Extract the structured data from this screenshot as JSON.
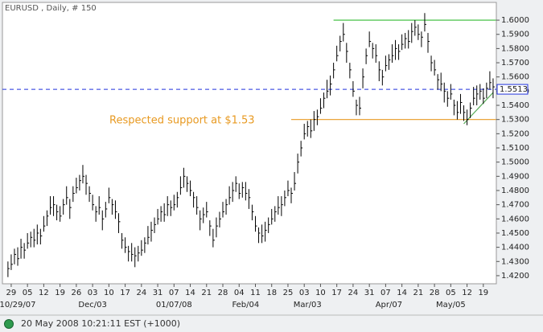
{
  "chart_data": {
    "type": "ohlc",
    "title": "EURUSD , Daily, # 150",
    "color": "#000000",
    "close": [
      1.425,
      1.428,
      1.435,
      1.432,
      1.44,
      1.438,
      1.443,
      1.447,
      1.445,
      1.45,
      1.448,
      1.455,
      1.462,
      1.468,
      1.47,
      1.465,
      1.462,
      1.47,
      1.475,
      1.468,
      1.478,
      1.482,
      1.487,
      1.49,
      1.485,
      1.478,
      1.47,
      1.465,
      1.468,
      1.46,
      1.467,
      1.475,
      1.47,
      1.465,
      1.458,
      1.445,
      1.44,
      1.437,
      1.435,
      1.434,
      1.436,
      1.438,
      1.443,
      1.447,
      1.452,
      1.456,
      1.46,
      1.465,
      1.463,
      1.47,
      1.468,
      1.47,
      1.475,
      1.482,
      1.49,
      1.485,
      1.48,
      1.475,
      1.468,
      1.46,
      1.463,
      1.465,
      1.455,
      1.445,
      1.455,
      1.46,
      1.465,
      1.47,
      1.475,
      1.48,
      1.485,
      1.478,
      1.482,
      1.478,
      1.475,
      1.465,
      1.455,
      1.45,
      1.448,
      1.452,
      1.456,
      1.46,
      1.465,
      1.468,
      1.47,
      1.475,
      1.48,
      1.478,
      1.485,
      1.5,
      1.51,
      1.52,
      1.525,
      1.522,
      1.53,
      1.532,
      1.538,
      1.545,
      1.55,
      1.555,
      1.565,
      1.575,
      1.585,
      1.59,
      1.578,
      1.565,
      1.55,
      1.54,
      1.538,
      1.56,
      1.575,
      1.585,
      1.58,
      1.575,
      1.565,
      1.56,
      1.568,
      1.572,
      1.575,
      1.58,
      1.578,
      1.583,
      1.587,
      1.585,
      1.592,
      1.595,
      1.59,
      1.588,
      1.597,
      1.585,
      1.57,
      1.565,
      1.558,
      1.555,
      1.55,
      1.545,
      1.548,
      1.54,
      1.535,
      1.542,
      1.535,
      1.53,
      1.538,
      1.545,
      1.548,
      1.55,
      1.545,
      1.552,
      1.556,
      1.553
    ],
    "high": [
      1.43,
      1.435,
      1.439,
      1.44,
      1.446,
      1.443,
      1.45,
      1.451,
      1.453,
      1.456,
      1.453,
      1.462,
      1.466,
      1.476,
      1.476,
      1.47,
      1.469,
      1.474,
      1.483,
      1.474,
      1.483,
      1.489,
      1.491,
      1.498,
      1.491,
      1.483,
      1.477,
      1.469,
      1.476,
      1.466,
      1.472,
      1.482,
      1.474,
      1.473,
      1.464,
      1.45,
      1.447,
      1.441,
      1.443,
      1.44,
      1.441,
      1.445,
      1.447,
      1.455,
      1.458,
      1.461,
      1.467,
      1.469,
      1.471,
      1.476,
      1.473,
      1.477,
      1.479,
      1.49,
      1.496,
      1.49,
      1.487,
      1.479,
      1.476,
      1.466,
      1.468,
      1.472,
      1.459,
      1.453,
      1.461,
      1.465,
      1.472,
      1.474,
      1.483,
      1.486,
      1.49,
      1.485,
      1.486,
      1.486,
      1.481,
      1.47,
      1.462,
      1.454,
      1.456,
      1.458,
      1.461,
      1.467,
      1.469,
      1.476,
      1.476,
      1.48,
      1.487,
      1.482,
      1.493,
      1.506,
      1.515,
      1.527,
      1.529,
      1.53,
      1.536,
      1.537,
      1.545,
      1.549,
      1.558,
      1.561,
      1.57,
      1.582,
      1.589,
      1.598,
      1.584,
      1.57,
      1.557,
      1.544,
      1.546,
      1.566,
      1.58,
      1.592,
      1.584,
      1.583,
      1.571,
      1.565,
      1.575,
      1.576,
      1.583,
      1.586,
      1.583,
      1.59,
      1.591,
      1.593,
      1.598,
      1.6,
      1.597,
      1.592,
      1.605,
      1.591,
      1.575,
      1.572,
      1.562,
      1.563,
      1.556,
      1.55,
      1.555,
      1.544,
      1.543,
      1.548,
      1.54,
      1.537,
      1.542,
      1.553,
      1.554,
      1.555,
      1.552,
      1.556,
      1.564,
      1.559
    ],
    "low": [
      1.419,
      1.424,
      1.428,
      1.427,
      1.432,
      1.432,
      1.439,
      1.44,
      1.44,
      1.442,
      1.442,
      1.451,
      1.455,
      1.463,
      1.462,
      1.459,
      1.458,
      1.463,
      1.47,
      1.46,
      1.472,
      1.478,
      1.48,
      1.485,
      1.477,
      1.472,
      1.466,
      1.458,
      1.463,
      1.452,
      1.461,
      1.471,
      1.463,
      1.46,
      1.45,
      1.439,
      1.436,
      1.43,
      1.43,
      1.426,
      1.43,
      1.434,
      1.436,
      1.442,
      1.444,
      1.45,
      1.456,
      1.458,
      1.458,
      1.462,
      1.462,
      1.466,
      1.468,
      1.477,
      1.482,
      1.479,
      1.476,
      1.468,
      1.463,
      1.452,
      1.457,
      1.461,
      1.448,
      1.44,
      1.447,
      1.454,
      1.461,
      1.463,
      1.47,
      1.472,
      1.479,
      1.474,
      1.475,
      1.473,
      1.467,
      1.459,
      1.451,
      1.443,
      1.443,
      1.444,
      1.45,
      1.456,
      1.458,
      1.463,
      1.462,
      1.469,
      1.476,
      1.471,
      1.48,
      1.492,
      1.504,
      1.516,
      1.518,
      1.517,
      1.522,
      1.526,
      1.534,
      1.538,
      1.545,
      1.547,
      1.559,
      1.571,
      1.578,
      1.585,
      1.57,
      1.559,
      1.546,
      1.533,
      1.533,
      1.552,
      1.569,
      1.581,
      1.573,
      1.57,
      1.557,
      1.554,
      1.564,
      1.565,
      1.57,
      1.572,
      1.572,
      1.579,
      1.58,
      1.58,
      1.584,
      1.589,
      1.586,
      1.581,
      1.592,
      1.577,
      1.564,
      1.561,
      1.551,
      1.55,
      1.542,
      1.539,
      1.544,
      1.533,
      1.53,
      1.534,
      1.529,
      1.526,
      1.531,
      1.54,
      1.54,
      1.544,
      1.541,
      1.545,
      1.551,
      1.545
    ],
    "xlim": [
      -1.7,
      150
    ],
    "ylim": [
      1.4143,
      1.6125
    ],
    "yticks": [
      {
        "value": 1.42,
        "label": "1.4200"
      },
      {
        "value": 1.43,
        "label": "1.4300"
      },
      {
        "value": 1.44,
        "label": "1.4400"
      },
      {
        "value": 1.45,
        "label": "1.4500"
      },
      {
        "value": 1.46,
        "label": "1.4600"
      },
      {
        "value": 1.47,
        "label": "1.4700"
      },
      {
        "value": 1.48,
        "label": "1.4800"
      },
      {
        "value": 1.49,
        "label": "1.4900"
      },
      {
        "value": 1.5,
        "label": "1.5000"
      },
      {
        "value": 1.51,
        "label": "1.5100"
      },
      {
        "value": 1.52,
        "label": "1.5200"
      },
      {
        "value": 1.53,
        "label": "1.5300"
      },
      {
        "value": 1.54,
        "label": "1.5400"
      },
      {
        "value": 1.55,
        "label": "1.5500"
      },
      {
        "value": 1.56,
        "label": "1.5600"
      },
      {
        "value": 1.57,
        "label": "1.5700"
      },
      {
        "value": 1.58,
        "label": "1.5800"
      },
      {
        "value": 1.59,
        "label": "1.5900"
      },
      {
        "value": 1.6,
        "label": "1.6000"
      }
    ],
    "xticks": [
      {
        "value": 1,
        "label": "29"
      },
      {
        "value": 6,
        "label": "05"
      },
      {
        "value": 11,
        "label": "12"
      },
      {
        "value": 16,
        "label": "19"
      },
      {
        "value": 21,
        "label": "26"
      },
      {
        "value": 26,
        "label": "03"
      },
      {
        "value": 31,
        "label": "10"
      },
      {
        "value": 36,
        "label": "17"
      },
      {
        "value": 41,
        "label": "24"
      },
      {
        "value": 46,
        "label": "31"
      },
      {
        "value": 51,
        "label": "07"
      },
      {
        "value": 56,
        "label": "14"
      },
      {
        "value": 61,
        "label": "21"
      },
      {
        "value": 66,
        "label": "28"
      },
      {
        "value": 71,
        "label": "04"
      },
      {
        "value": 76,
        "label": "11"
      },
      {
        "value": 81,
        "label": "18"
      },
      {
        "value": 86,
        "label": "25"
      },
      {
        "value": 91,
        "label": "03"
      },
      {
        "value": 96,
        "label": "10"
      },
      {
        "value": 101,
        "label": "17"
      },
      {
        "value": 106,
        "label": "24"
      },
      {
        "value": 111,
        "label": "31"
      },
      {
        "value": 116,
        "label": "07"
      },
      {
        "value": 121,
        "label": "14"
      },
      {
        "value": 126,
        "label": "21"
      },
      {
        "value": 131,
        "label": "28"
      },
      {
        "value": 136,
        "label": "05"
      },
      {
        "value": 141,
        "label": "12"
      },
      {
        "value": 146,
        "label": "19"
      }
    ],
    "x_period_labels": [
      {
        "value": 1,
        "label": "10/29/07"
      },
      {
        "value": 26,
        "label": "Dec/03"
      },
      {
        "value": 51,
        "label": "01/07/08"
      },
      {
        "value": 73,
        "label": "Feb/04"
      },
      {
        "value": 92,
        "label": "Mar/03"
      },
      {
        "value": 117,
        "label": "Apr/07"
      },
      {
        "value": 136,
        "label": "May/05"
      }
    ],
    "lines": [
      {
        "x": [
          87,
          149.9
        ],
        "values": [
          1.53,
          1.53
        ],
        "color": "#e89a22"
      },
      {
        "x": [
          100,
          149.9
        ],
        "values": [
          1.6,
          1.6
        ],
        "color": "#33bb33"
      },
      {
        "x": [
          140,
          149
        ],
        "values": [
          1.527,
          1.549
        ],
        "color": "#55aa55"
      }
    ],
    "annotation": "Respected support at $1.53",
    "current_price": {
      "value": 1.5513,
      "color": "#2233dd"
    }
  },
  "footer": {
    "timestamp": "20 May 2008 10:21:11 EST (+1000)"
  }
}
